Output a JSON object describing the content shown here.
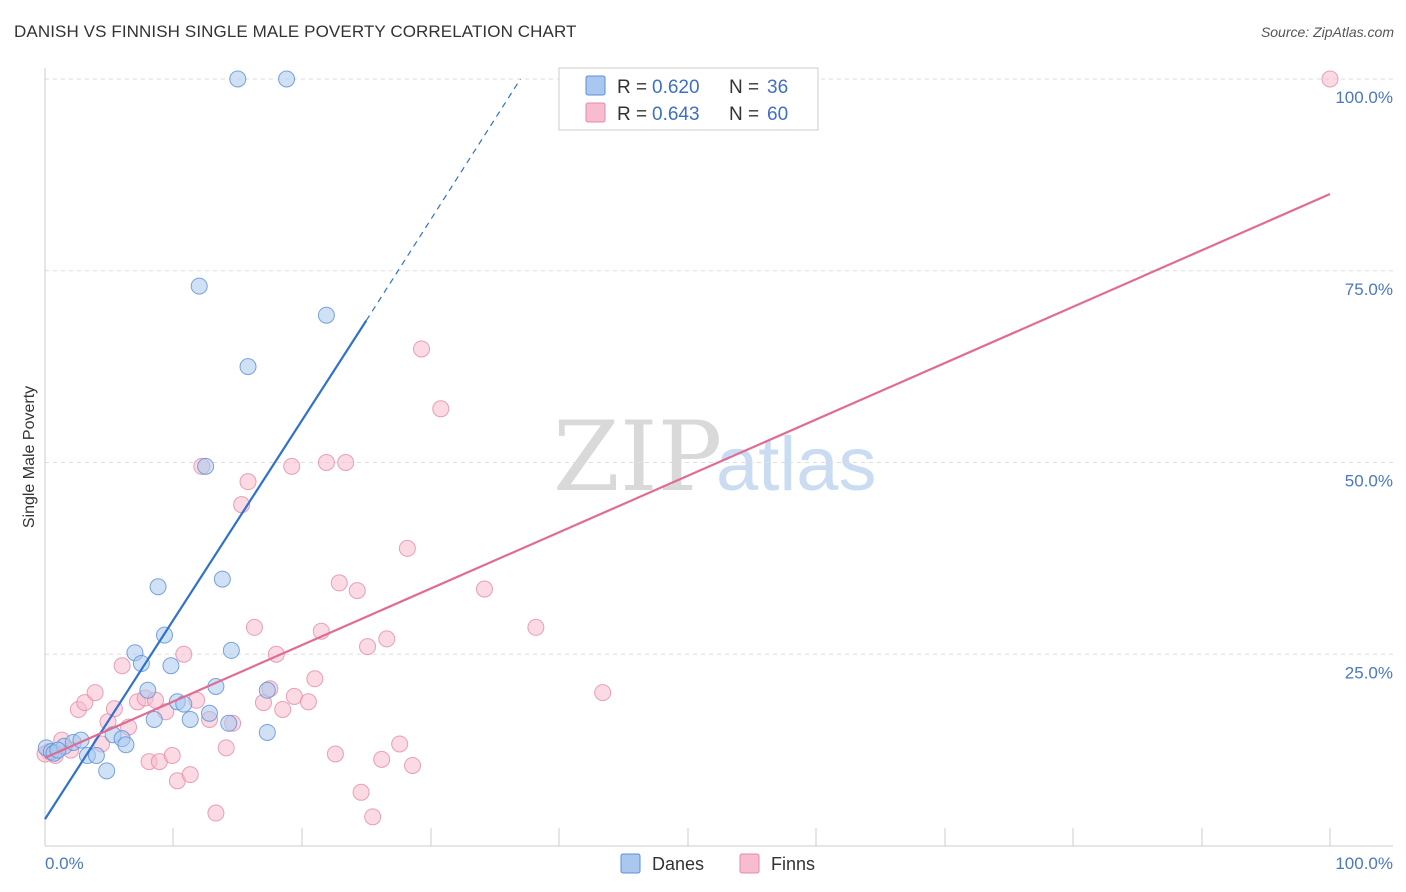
{
  "title": "DANISH VS FINNISH SINGLE MALE POVERTY CORRELATION CHART",
  "source": "Source: ZipAtlas.com",
  "watermark": {
    "zip": "ZIP",
    "atlas": "atlas"
  },
  "colors": {
    "danes_fill": "#aac8ef",
    "danes_stroke": "#5a8fd6",
    "danes_line": "#2f72cc",
    "finns_fill": "#f7bccd",
    "finns_stroke": "#e58aa8",
    "finns_line": "#e06c94",
    "axis_text": "#4a78c2",
    "grid": "#dddddd"
  },
  "legend": [
    {
      "series": "Danes",
      "r_label": "R =",
      "r_value": "0.620",
      "n_label": "N =",
      "n_value": "36"
    },
    {
      "series": "Finns",
      "r_label": "R =",
      "r_value": "0.643",
      "n_label": "N =",
      "n_value": "60"
    }
  ],
  "chart_data": {
    "type": "scatter",
    "title": "DANISH VS FINNISH SINGLE MALE POVERTY CORRELATION CHART",
    "xlabel": "",
    "ylabel": "Single Male Poverty",
    "xlim": [
      0,
      100
    ],
    "ylim": [
      0,
      100
    ],
    "x_tick_labels": [
      "0.0%",
      "100.0%"
    ],
    "y_ticks": [
      25,
      50,
      75,
      100
    ],
    "y_tick_labels": [
      "25.0%",
      "50.0%",
      "75.0%",
      "100.0%"
    ],
    "grid": true,
    "legend_position": "top-center",
    "series": [
      {
        "name": "Danes",
        "r": 0.62,
        "n": 36,
        "trend": {
          "x0": 0,
          "y0": 3.5,
          "x1": 25,
          "y1": 68.5,
          "dashed_to_x": 37,
          "dashed_to_y": 100
        },
        "points": [
          [
            0.1,
            12.8
          ],
          [
            0.5,
            12.3
          ],
          [
            0.7,
            12.1
          ],
          [
            1.5,
            13.0
          ],
          [
            2.2,
            13.5
          ],
          [
            2.8,
            13.8
          ],
          [
            3.3,
            11.8
          ],
          [
            4.0,
            11.8
          ],
          [
            4.8,
            9.8
          ],
          [
            5.3,
            14.5
          ],
          [
            6.0,
            14.0
          ],
          [
            6.3,
            13.2
          ],
          [
            7.0,
            25.2
          ],
          [
            7.5,
            23.8
          ],
          [
            8.0,
            20.3
          ],
          [
            8.5,
            16.5
          ],
          [
            8.8,
            33.8
          ],
          [
            9.3,
            27.5
          ],
          [
            9.8,
            23.5
          ],
          [
            10.3,
            18.8
          ],
          [
            10.8,
            18.5
          ],
          [
            11.3,
            16.5
          ],
          [
            12.0,
            73.0
          ],
          [
            12.5,
            49.5
          ],
          [
            12.8,
            17.3
          ],
          [
            13.3,
            20.8
          ],
          [
            13.8,
            34.8
          ],
          [
            14.3,
            16.0
          ],
          [
            14.5,
            25.5
          ],
          [
            15.0,
            100.0
          ],
          [
            15.8,
            62.5
          ],
          [
            17.3,
            20.3
          ],
          [
            17.3,
            14.8
          ],
          [
            18.8,
            100.0
          ],
          [
            21.9,
            69.2
          ],
          [
            1.0,
            12.5
          ]
        ]
      },
      {
        "name": "Finns",
        "r": 0.643,
        "n": 60,
        "trend": {
          "x0": 0,
          "y0": 11.5,
          "x1": 100,
          "y1": 85.0
        },
        "points": [
          [
            0.3,
            12.3
          ],
          [
            0.8,
            11.8
          ],
          [
            1.3,
            13.8
          ],
          [
            2.0,
            12.5
          ],
          [
            2.6,
            17.8
          ],
          [
            3.1,
            18.7
          ],
          [
            3.9,
            20.0
          ],
          [
            4.4,
            13.3
          ],
          [
            4.9,
            16.2
          ],
          [
            5.4,
            17.9
          ],
          [
            6.0,
            23.5
          ],
          [
            6.5,
            15.5
          ],
          [
            7.2,
            18.8
          ],
          [
            7.8,
            19.3
          ],
          [
            8.1,
            11.0
          ],
          [
            8.6,
            19.0
          ],
          [
            8.9,
            11.0
          ],
          [
            9.4,
            17.5
          ],
          [
            9.9,
            11.8
          ],
          [
            10.3,
            8.5
          ],
          [
            10.8,
            25.0
          ],
          [
            11.3,
            9.3
          ],
          [
            11.8,
            19.0
          ],
          [
            12.2,
            49.5
          ],
          [
            12.8,
            16.5
          ],
          [
            13.3,
            4.3
          ],
          [
            14.1,
            12.8
          ],
          [
            14.6,
            16.0
          ],
          [
            15.3,
            44.5
          ],
          [
            15.8,
            47.5
          ],
          [
            16.3,
            28.5
          ],
          [
            17.0,
            18.7
          ],
          [
            17.5,
            20.5
          ],
          [
            18.0,
            25.0
          ],
          [
            18.5,
            17.8
          ],
          [
            19.2,
            49.5
          ],
          [
            19.4,
            19.5
          ],
          [
            20.5,
            18.8
          ],
          [
            21.0,
            21.8
          ],
          [
            21.5,
            28.0
          ],
          [
            21.9,
            50.0
          ],
          [
            22.6,
            12.0
          ],
          [
            22.9,
            34.3
          ],
          [
            23.4,
            50.0
          ],
          [
            24.3,
            33.3
          ],
          [
            24.6,
            7.0
          ],
          [
            25.1,
            26.0
          ],
          [
            25.5,
            3.8
          ],
          [
            26.2,
            11.3
          ],
          [
            26.6,
            27.0
          ],
          [
            27.6,
            13.3
          ],
          [
            28.2,
            38.8
          ],
          [
            28.6,
            10.5
          ],
          [
            29.3,
            64.8
          ],
          [
            30.8,
            57.0
          ],
          [
            34.2,
            33.5
          ],
          [
            38.2,
            28.5
          ],
          [
            43.4,
            20.0
          ],
          [
            100.0,
            100.0
          ],
          [
            0.0,
            12.0
          ]
        ]
      }
    ]
  },
  "bottom_legend": [
    {
      "series": "Danes",
      "label": "Danes"
    },
    {
      "series": "Finns",
      "label": "Finns"
    }
  ]
}
